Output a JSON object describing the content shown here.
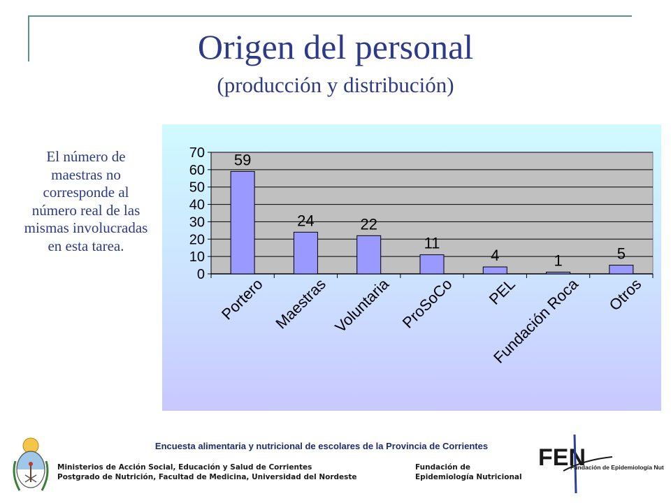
{
  "slide": {
    "title": "Origen del personal",
    "subtitle": "(producción y distribución)",
    "note": "El número de maestras no corresponde al número real de las mismas involucradas en esta tarea."
  },
  "chart_data": {
    "type": "bar",
    "categories": [
      "Portero",
      "Maestras",
      "Voluntaria",
      "ProSoCo",
      "PEL",
      "Fundación Roca",
      "Otros"
    ],
    "values": [
      59,
      24,
      22,
      11,
      4,
      1,
      5
    ],
    "data_labels": [
      "59",
      "24",
      "22",
      "11",
      "4",
      "1",
      "5"
    ],
    "y_ticks": [
      "0",
      "10",
      "20",
      "30",
      "40",
      "50",
      "60",
      "70"
    ],
    "ylim": [
      0,
      70
    ],
    "grid": true,
    "legend": "none",
    "colors": {
      "bar": "#9999ff",
      "plot_bg": "#c0c0c0",
      "bar_stroke": "#000000"
    }
  },
  "footer": {
    "survey": "Encuesta alimentaria y  nutricional de escolares de la Provincia de Corrientes",
    "left_line1": "Ministerios de Acción Social, Educación y Salud de Corrientes",
    "left_line2": "Postgrado de Nutrición, Facultad de Medicina, Universidad del Nordeste",
    "right_line1": "Fundación de",
    "right_line2": "Epidemiología Nutricional",
    "logo_text": "FEN",
    "logo_subtext": "Fundación de Epidemiología Nutricional"
  }
}
